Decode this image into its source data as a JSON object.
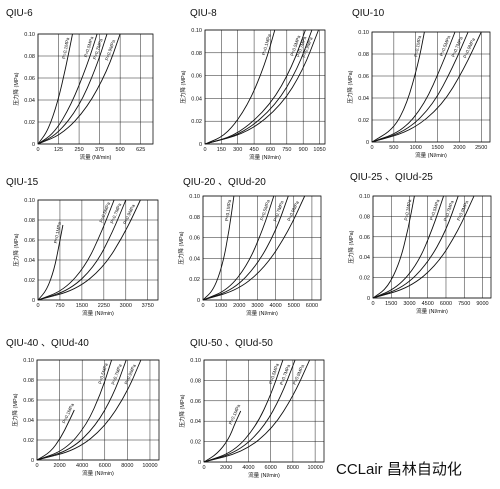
{
  "brand": {
    "name": "CCLair",
    "cn": "昌林自动化"
  },
  "chart_data": [
    {
      "type": "line",
      "title": "QIU-6",
      "title_suffix": "",
      "xlabel": "流量 (Nl/min)",
      "ylabel": "压力降 (MPa)",
      "xticks": [
        0,
        125,
        250,
        375,
        500,
        625
      ],
      "yticks": [
        0,
        0.02,
        0.04,
        0.06,
        0.08,
        0.1
      ],
      "xlim": [
        0,
        700
      ],
      "ylim": [
        0,
        0.1
      ],
      "series": [
        {
          "name": "P=0.1MPa",
          "x": [
            0,
            60,
            120,
            170,
            210
          ],
          "y": [
            0,
            0.012,
            0.038,
            0.07,
            0.1
          ]
        },
        {
          "name": "P=0.5MPa",
          "x": [
            0,
            100,
            200,
            300,
            360
          ],
          "y": [
            0,
            0.01,
            0.035,
            0.072,
            0.1
          ]
        },
        {
          "name": "P=0.7MPa",
          "x": [
            0,
            120,
            250,
            350,
            420
          ],
          "y": [
            0,
            0.009,
            0.034,
            0.068,
            0.1
          ]
        },
        {
          "name": "P=0.9MPa",
          "x": [
            0,
            150,
            300,
            420,
            500
          ],
          "y": [
            0,
            0.009,
            0.033,
            0.066,
            0.1
          ]
        }
      ]
    },
    {
      "type": "line",
      "title": "QIU-8",
      "title_suffix": "",
      "xlabel": "流量 (Nl/min)",
      "ylabel": "压力降 (MPa)",
      "xticks": [
        0,
        150,
        300,
        450,
        600,
        750,
        900,
        1050
      ],
      "yticks": [
        0,
        0.02,
        0.04,
        0.06,
        0.08,
        0.1
      ],
      "xlim": [
        0,
        1100
      ],
      "ylim": [
        0,
        0.1
      ],
      "series": [
        {
          "name": "P=0.1MPa",
          "x": [
            0,
            200,
            400,
            550,
            640
          ],
          "y": [
            0,
            0.008,
            0.035,
            0.07,
            0.1
          ]
        },
        {
          "name": "P=0.5MPa",
          "x": [
            0,
            300,
            600,
            800,
            920
          ],
          "y": [
            0,
            0.008,
            0.034,
            0.068,
            0.1
          ]
        },
        {
          "name": "P=0.7MPa",
          "x": [
            0,
            350,
            650,
            850,
            980
          ],
          "y": [
            0,
            0.009,
            0.034,
            0.066,
            0.1
          ]
        },
        {
          "name": "P=0.9MPa",
          "x": [
            0,
            400,
            700,
            900,
            1040
          ],
          "y": [
            0,
            0.01,
            0.034,
            0.065,
            0.1
          ]
        }
      ]
    },
    {
      "type": "line",
      "title": "QIU-10",
      "title_suffix": "",
      "xlabel": "流量 (Nl/min)",
      "ylabel": "压力降 (MPa)",
      "xticks": [
        0,
        500,
        1000,
        1500,
        2000,
        2500
      ],
      "yticks": [
        0,
        0.02,
        0.04,
        0.06,
        0.08,
        0.1
      ],
      "xlim": [
        0,
        2700
      ],
      "ylim": [
        0,
        0.1
      ],
      "series": [
        {
          "name": "P=0.1MPa",
          "x": [
            0,
            500,
            800,
            1050,
            1200
          ],
          "y": [
            0,
            0.012,
            0.035,
            0.07,
            0.1
          ]
        },
        {
          "name": "P=0.5MPa",
          "x": [
            0,
            700,
            1200,
            1600,
            1900
          ],
          "y": [
            0,
            0.01,
            0.034,
            0.07,
            0.1
          ]
        },
        {
          "name": "P=0.7MPa",
          "x": [
            0,
            800,
            1400,
            1850,
            2200
          ],
          "y": [
            0,
            0.01,
            0.034,
            0.068,
            0.1
          ]
        },
        {
          "name": "P=0.9MPa",
          "x": [
            0,
            900,
            1600,
            2100,
            2500
          ],
          "y": [
            0,
            0.01,
            0.033,
            0.066,
            0.1
          ]
        }
      ]
    },
    {
      "type": "line",
      "title": "QIU-15",
      "title_suffix": "",
      "xlabel": "流量 (Nl/min)",
      "ylabel": "压力降 (MPa)",
      "xticks": [
        0,
        750,
        1500,
        2250,
        3000,
        3750
      ],
      "yticks": [
        0,
        0.02,
        0.04,
        0.06,
        0.08,
        0.1
      ],
      "xlim": [
        0,
        4100
      ],
      "ylim": [
        0,
        0.1
      ],
      "series": [
        {
          "name": "P=0.1MPa",
          "x": [
            0,
            300,
            550,
            720,
            850
          ],
          "y": [
            0,
            0.01,
            0.03,
            0.055,
            0.075
          ]
        },
        {
          "name": "P=0.5MPa",
          "x": [
            0,
            900,
            1650,
            2200,
            2600
          ],
          "y": [
            0,
            0.01,
            0.035,
            0.07,
            0.1
          ]
        },
        {
          "name": "P=0.7MPa",
          "x": [
            0,
            1100,
            1950,
            2550,
            3000
          ],
          "y": [
            0,
            0.01,
            0.034,
            0.068,
            0.1
          ]
        },
        {
          "name": "P=0.9MPa",
          "x": [
            0,
            1300,
            2250,
            2950,
            3500
          ],
          "y": [
            0,
            0.01,
            0.033,
            0.066,
            0.1
          ]
        }
      ]
    },
    {
      "type": "line",
      "title": "QIU-20 、QIU",
      "title_suffix": "d-20",
      "xlabel": "流量 (Nl/min)",
      "ylabel": "压力降 (MPa)",
      "xticks": [
        0,
        1000,
        2000,
        3000,
        4000,
        5000,
        6000
      ],
      "yticks": [
        0,
        0.02,
        0.04,
        0.06,
        0.08,
        0.1
      ],
      "xlim": [
        0,
        6500
      ],
      "ylim": [
        0,
        0.1
      ],
      "series": [
        {
          "name": "P=0.1MPa",
          "x": [
            0,
            600,
            1100,
            1450,
            1700
          ],
          "y": [
            0,
            0.01,
            0.035,
            0.068,
            0.1
          ]
        },
        {
          "name": "P=0.5MPa",
          "x": [
            0,
            1400,
            2500,
            3300,
            3900
          ],
          "y": [
            0,
            0.01,
            0.035,
            0.068,
            0.1
          ]
        },
        {
          "name": "P=0.7MPa",
          "x": [
            0,
            1700,
            3000,
            4000,
            4700
          ],
          "y": [
            0,
            0.01,
            0.034,
            0.066,
            0.1
          ]
        },
        {
          "name": "P=0.9MPa",
          "x": [
            0,
            2000,
            3500,
            4700,
            5600
          ],
          "y": [
            0,
            0.01,
            0.033,
            0.066,
            0.1
          ]
        }
      ]
    },
    {
      "type": "line",
      "title": "QIU-25 、QIU",
      "title_suffix": "d-25",
      "xlabel": "流量 (Nl/min)",
      "ylabel": "压力降 (MPa)",
      "xticks": [
        0,
        1500,
        3000,
        4500,
        6000,
        7500,
        9000
      ],
      "yticks": [
        0,
        0.02,
        0.04,
        0.06,
        0.08,
        0.1
      ],
      "xlim": [
        0,
        9700
      ],
      "ylim": [
        0,
        0.1
      ],
      "series": [
        {
          "name": "P=0.1MPa",
          "x": [
            0,
            1200,
            2200,
            2900,
            3400
          ],
          "y": [
            0,
            0.01,
            0.035,
            0.068,
            0.1
          ]
        },
        {
          "name": "P=0.5MPa",
          "x": [
            0,
            2000,
            3700,
            4900,
            5800
          ],
          "y": [
            0,
            0.01,
            0.034,
            0.068,
            0.1
          ]
        },
        {
          "name": "P=0.7MPa",
          "x": [
            0,
            2500,
            4500,
            6000,
            7000
          ],
          "y": [
            0,
            0.01,
            0.034,
            0.066,
            0.1
          ]
        },
        {
          "name": "P=0.9MPa",
          "x": [
            0,
            3000,
            5300,
            7000,
            8300
          ],
          "y": [
            0,
            0.01,
            0.033,
            0.066,
            0.1
          ]
        }
      ]
    },
    {
      "type": "line",
      "title": "QIU-40 、QIU",
      "title_suffix": "d-40",
      "xlabel": "流量 (Nl/min)",
      "ylabel": "压力降 (MPa)",
      "xticks": [
        0,
        2000,
        4000,
        6000,
        8000,
        10000
      ],
      "yticks": [
        0,
        0.02,
        0.04,
        0.06,
        0.08,
        0.1
      ],
      "xlim": [
        0,
        10800
      ],
      "ylim": [
        0,
        0.1
      ],
      "series": [
        {
          "name": "P=0.1MPa",
          "x": [
            0,
            1200,
            2100,
            2800,
            3300
          ],
          "y": [
            0,
            0.008,
            0.022,
            0.038,
            0.05
          ]
        },
        {
          "name": "P=0.5MPa",
          "x": [
            0,
            2500,
            4400,
            5700,
            6600
          ],
          "y": [
            0,
            0.01,
            0.035,
            0.068,
            0.1
          ]
        },
        {
          "name": "P=0.7MPa",
          "x": [
            0,
            3000,
            5200,
            6800,
            7900
          ],
          "y": [
            0,
            0.01,
            0.034,
            0.066,
            0.1
          ]
        },
        {
          "name": "P=0.9MPa",
          "x": [
            0,
            3500,
            6000,
            7900,
            9200
          ],
          "y": [
            0,
            0.01,
            0.033,
            0.066,
            0.1
          ]
        }
      ]
    },
    {
      "type": "line",
      "title": "QIU-50 、QIU",
      "title_suffix": "d-50",
      "xlabel": "流量 (Nl/min)",
      "ylabel": "压力降 (MPa)",
      "xticks": [
        0,
        2000,
        4000,
        6000,
        8000,
        10000
      ],
      "yticks": [
        0,
        0.02,
        0.04,
        0.06,
        0.08,
        0.1
      ],
      "xlim": [
        0,
        10800
      ],
      "ylim": [
        0,
        0.1
      ],
      "series": [
        {
          "name": "P=0.1MPa",
          "x": [
            0,
            1200,
            2200,
            2800,
            3300
          ],
          "y": [
            0,
            0.008,
            0.022,
            0.038,
            0.05
          ]
        },
        {
          "name": "P=0.5MPa",
          "x": [
            0,
            2700,
            4700,
            6100,
            7100
          ],
          "y": [
            0,
            0.01,
            0.035,
            0.068,
            0.1
          ]
        },
        {
          "name": "P=0.7MPa",
          "x": [
            0,
            3100,
            5400,
            7000,
            8200
          ],
          "y": [
            0,
            0.01,
            0.034,
            0.066,
            0.1
          ]
        },
        {
          "name": "P=0.9MPa",
          "x": [
            0,
            3600,
            6200,
            8100,
            9500
          ],
          "y": [
            0,
            0.01,
            0.033,
            0.066,
            0.1
          ]
        }
      ]
    }
  ]
}
